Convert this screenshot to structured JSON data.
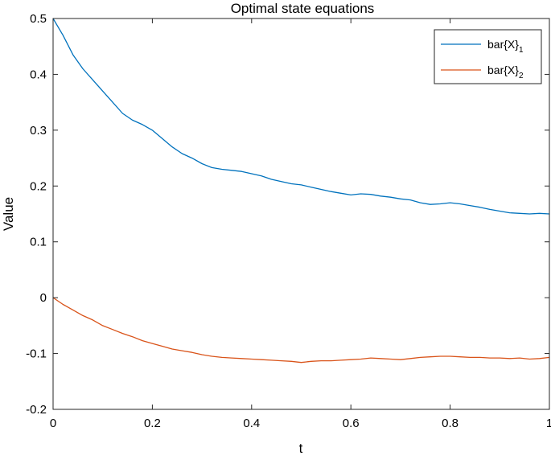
{
  "chart_data": {
    "type": "line",
    "title": "Optimal state equations",
    "xlabel": "t",
    "ylabel": "Value",
    "xlim": [
      0,
      1
    ],
    "ylim": [
      -0.2,
      0.5
    ],
    "xticks": [
      "0",
      "0.2",
      "0.4",
      "0.6",
      "0.8",
      "1"
    ],
    "yticks": [
      "-0.2",
      "-0.1",
      "0",
      "0.1",
      "0.2",
      "0.3",
      "0.4",
      "0.5"
    ],
    "grid": false,
    "legend_position": "top-right",
    "series": [
      {
        "name": "bar{X}",
        "subscript": "1",
        "color": "#0072BD",
        "x": [
          0,
          0.02,
          0.04,
          0.06,
          0.08,
          0.1,
          0.12,
          0.14,
          0.16,
          0.18,
          0.2,
          0.22,
          0.24,
          0.26,
          0.28,
          0.3,
          0.32,
          0.34,
          0.36,
          0.38,
          0.4,
          0.42,
          0.44,
          0.46,
          0.48,
          0.5,
          0.52,
          0.54,
          0.56,
          0.58,
          0.6,
          0.62,
          0.64,
          0.66,
          0.68,
          0.7,
          0.72,
          0.74,
          0.76,
          0.78,
          0.8,
          0.82,
          0.84,
          0.86,
          0.88,
          0.9,
          0.92,
          0.94,
          0.96,
          0.98,
          1.0
        ],
        "y": [
          0.5,
          0.47,
          0.435,
          0.41,
          0.39,
          0.37,
          0.35,
          0.33,
          0.318,
          0.31,
          0.3,
          0.285,
          0.27,
          0.258,
          0.25,
          0.24,
          0.233,
          0.23,
          0.228,
          0.226,
          0.222,
          0.218,
          0.212,
          0.208,
          0.204,
          0.202,
          0.198,
          0.194,
          0.19,
          0.187,
          0.184,
          0.186,
          0.185,
          0.182,
          0.18,
          0.177,
          0.175,
          0.17,
          0.167,
          0.168,
          0.17,
          0.168,
          0.165,
          0.162,
          0.158,
          0.155,
          0.152,
          0.151,
          0.15,
          0.151,
          0.15
        ]
      },
      {
        "name": "bar{X}",
        "subscript": "2",
        "color": "#D95319",
        "x": [
          0,
          0.02,
          0.04,
          0.06,
          0.08,
          0.1,
          0.12,
          0.14,
          0.16,
          0.18,
          0.2,
          0.22,
          0.24,
          0.26,
          0.28,
          0.3,
          0.32,
          0.34,
          0.36,
          0.38,
          0.4,
          0.42,
          0.44,
          0.46,
          0.48,
          0.5,
          0.52,
          0.54,
          0.56,
          0.58,
          0.6,
          0.62,
          0.64,
          0.66,
          0.68,
          0.7,
          0.72,
          0.74,
          0.76,
          0.78,
          0.8,
          0.82,
          0.84,
          0.86,
          0.88,
          0.9,
          0.92,
          0.94,
          0.96,
          0.98,
          1.0
        ],
        "y": [
          0.0,
          -0.012,
          -0.022,
          -0.032,
          -0.04,
          -0.05,
          -0.057,
          -0.064,
          -0.07,
          -0.077,
          -0.082,
          -0.087,
          -0.092,
          -0.095,
          -0.098,
          -0.102,
          -0.105,
          -0.107,
          -0.108,
          -0.109,
          -0.11,
          -0.111,
          -0.112,
          -0.113,
          -0.114,
          -0.116,
          -0.114,
          -0.113,
          -0.113,
          -0.112,
          -0.111,
          -0.11,
          -0.108,
          -0.109,
          -0.11,
          -0.111,
          -0.109,
          -0.107,
          -0.106,
          -0.105,
          -0.105,
          -0.106,
          -0.107,
          -0.107,
          -0.108,
          -0.108,
          -0.109,
          -0.108,
          -0.11,
          -0.109,
          -0.107
        ]
      }
    ]
  }
}
